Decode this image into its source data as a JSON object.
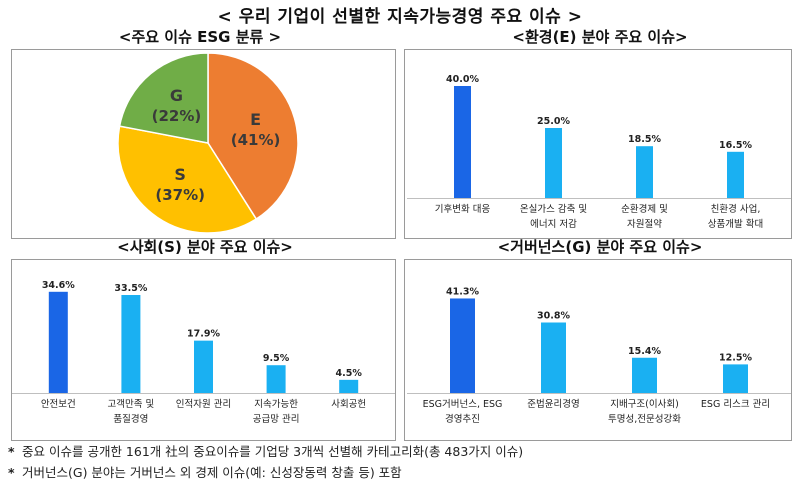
{
  "title": "< 우리 기업이 선별한 지속가능경영 주요 이슈 >",
  "panels": {
    "pie": "<주요 이슈 ESG 분류 >",
    "env": "<환경(E) 분야 주요 이슈>",
    "soc": "<사회(S) 분야 주요 이슈>",
    "gov": "<거버넌스(G) 분야 주요 이슈>"
  },
  "colors": {
    "bar_dark": "#1a66e6",
    "bar_light": "#1ab0f2",
    "pie_e": "#ed7d31",
    "pie_s": "#ffc000",
    "pie_g": "#70ad47"
  },
  "chart_data": [
    {
      "type": "pie",
      "slices": [
        {
          "label": "E",
          "value": 41,
          "text": "(41%)",
          "color": "#ed7d31"
        },
        {
          "label": "S",
          "value": 37,
          "text": "(37%)",
          "color": "#ffc000"
        },
        {
          "label": "G",
          "value": 22,
          "text": "(22%)",
          "color": "#70ad47"
        }
      ]
    },
    {
      "type": "bar",
      "categories": [
        [
          "기후변화 대응"
        ],
        [
          "온실가스 감축 및",
          "에너지 저감"
        ],
        [
          "순환경제 및",
          "자원절약"
        ],
        [
          "친환경 사업,",
          "상품개발 확대"
        ]
      ],
      "values": [
        40.0,
        25.0,
        18.5,
        16.5
      ],
      "labels": [
        "40.0%",
        "25.0%",
        "18.5%",
        "16.5%"
      ],
      "ylim": [
        0,
        45
      ]
    },
    {
      "type": "bar",
      "categories": [
        [
          "안전보건"
        ],
        [
          "고객만족 및",
          "품질경영"
        ],
        [
          "인적자원 관리"
        ],
        [
          "지속가능한",
          "공급망 관리"
        ],
        [
          "사회공헌"
        ]
      ],
      "values": [
        34.6,
        33.5,
        17.9,
        9.5,
        4.5
      ],
      "labels": [
        "34.6%",
        "33.5%",
        "17.9%",
        "9.5%",
        "4.5%"
      ],
      "ylim": [
        0,
        40
      ]
    },
    {
      "type": "bar",
      "categories": [
        [
          "ESG거버넌스, ESG",
          "경영추진"
        ],
        [
          "준법윤리경영"
        ],
        [
          "지배구조(이사회)",
          "투명성,전문성강화"
        ],
        [
          "ESG 리스크 관리"
        ]
      ],
      "values": [
        41.3,
        30.8,
        15.4,
        12.5
      ],
      "labels": [
        "41.3%",
        "30.8%",
        "15.4%",
        "12.5%"
      ],
      "ylim": [
        0,
        45
      ]
    }
  ],
  "notes": [
    "중요 이슈를 공개한 161개 社의 중요이슈를 기업당 3개씩 선별해 카테고리화(총 483가지 이슈)",
    "거버넌스(G) 분야는 거버넌스 외 경제 이슈(예: 신성장동력 창출 등) 포함"
  ]
}
